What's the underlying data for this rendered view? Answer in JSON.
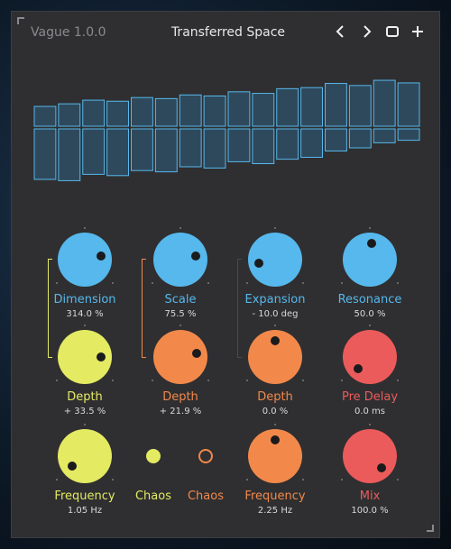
{
  "header": {
    "plugin_name": "Vague 1.0.0",
    "preset_name": "Transferred Space",
    "buttons": [
      "prev-preset",
      "next-preset",
      "window",
      "add-preset"
    ]
  },
  "visualizer": {
    "color": "#56b8ec",
    "bar_count": 16,
    "top_bar_levels": [
      0.18,
      0.23,
      0.3,
      0.28,
      0.35,
      0.33,
      0.4,
      0.38,
      0.46,
      0.43,
      0.52,
      0.54,
      0.62,
      0.58,
      0.68,
      0.63
    ],
    "bottom_bar_levels": [
      0.8,
      0.82,
      0.72,
      0.74,
      0.66,
      0.68,
      0.6,
      0.62,
      0.52,
      0.55,
      0.48,
      0.45,
      0.35,
      0.3,
      0.22,
      0.18
    ]
  },
  "colors": {
    "blue": "#56b8ec",
    "yellow": "#e4ea62",
    "orange": "#f2894a",
    "red": "#ec5b5b",
    "chaos_yellow": "#e4ea62",
    "chaos_orange": "#f2894a"
  },
  "knobs": [
    {
      "id": "dimension",
      "label": "Dimension",
      "value": "314.0 %",
      "color": "blue",
      "level": 0.79
    },
    {
      "id": "scale",
      "label": "Scale",
      "value": "75.5 %",
      "color": "blue",
      "level": 0.78
    },
    {
      "id": "expansion",
      "label": "Expansion",
      "value": "- 10.0 deg",
      "color": "blue",
      "level": 0.12
    },
    {
      "id": "resonance",
      "label": "Resonance",
      "value": "50.0 %",
      "color": "blue",
      "level": 0.52
    },
    {
      "id": "depth-1",
      "label": "Depth",
      "value": "+ 33.5 %",
      "color": "yellow",
      "level": 0.83
    },
    {
      "id": "depth-2",
      "label": "Depth",
      "value": "+ 21.9 %",
      "color": "orange",
      "level": 0.79
    },
    {
      "id": "depth-3",
      "label": "Depth",
      "value": "0.0 %",
      "color": "orange",
      "level": 0.5
    },
    {
      "id": "pre-delay",
      "label": "Pre Delay",
      "value": "0.0 ms",
      "color": "red",
      "level": 0.0
    },
    {
      "id": "frequency-1",
      "label": "Frequency",
      "value": "1.05 Hz",
      "color": "yellow",
      "level": 0.03
    },
    {
      "id": "frequency-2",
      "label": "Frequency",
      "value": "2.25 Hz",
      "color": "orange",
      "level": 0.5
    },
    {
      "id": "mix",
      "label": "Mix",
      "value": "100.0 %",
      "color": "red",
      "level": 1.0
    }
  ],
  "chaos": [
    {
      "id": "chaos-1",
      "label": "Chaos",
      "color": "yellow",
      "on": true
    },
    {
      "id": "chaos-2",
      "label": "Chaos",
      "color": "orange",
      "on": false
    }
  ]
}
